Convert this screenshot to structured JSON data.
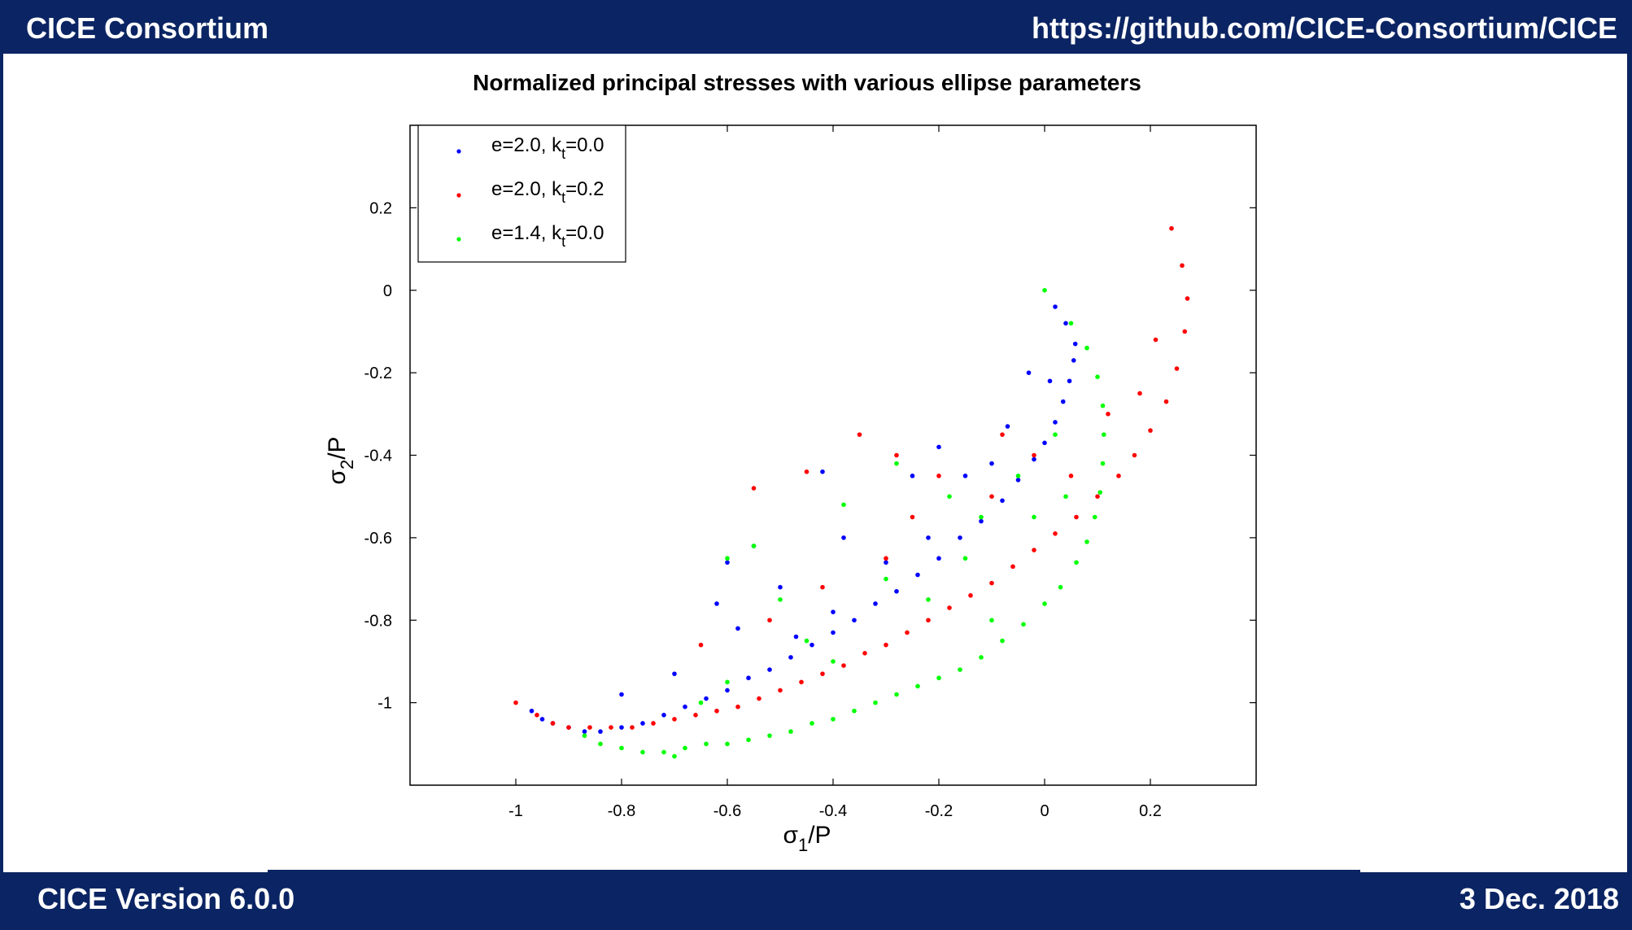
{
  "header": {
    "left_text": "CICE Consortium",
    "right_text": "https://github.com/CICE-Consortium/CICE"
  },
  "footer": {
    "left_text": "CICE Version 6.0.0",
    "right_text": "3 Dec. 2018"
  },
  "colors": {
    "frame": "#0b2463",
    "blue": "#0000ff",
    "red": "#ff0000",
    "green": "#00ff00"
  },
  "chart_data": {
    "type": "scatter",
    "title": "Normalized principal stresses with various ellipse parameters",
    "xlabel": {
      "main": "σ",
      "sub": "1",
      "tail": "/P"
    },
    "ylabel": {
      "main": "σ",
      "sub": "2",
      "tail": "/P"
    },
    "xlim": [
      -1.2,
      0.4
    ],
    "ylim": [
      -1.2,
      0.4
    ],
    "x_ticks": [
      -1,
      -0.8,
      -0.6,
      -0.4,
      -0.2,
      0,
      0.2
    ],
    "x_tick_labels": [
      "-1",
      "-0.8",
      "-0.6",
      "-0.4",
      "-0.2",
      "0",
      "0.2"
    ],
    "y_ticks": [
      -1,
      -0.8,
      -0.6,
      -0.4,
      -0.2,
      0,
      0.2
    ],
    "y_tick_labels": [
      "-1",
      "-0.8",
      "-0.6",
      "-0.4",
      "-0.2",
      "0",
      "0.2"
    ],
    "legend_position": "top-left",
    "series": [
      {
        "legend": {
          "main": "e=2.0, k",
          "sub": "t",
          "tail": "=0.0"
        },
        "color": "#0000ff",
        "points": [
          [
            -0.97,
            -1.02
          ],
          [
            -0.95,
            -1.04
          ],
          [
            -0.93,
            -1.05
          ],
          [
            -0.9,
            -1.06
          ],
          [
            -0.87,
            -1.07
          ],
          [
            -0.84,
            -1.07
          ],
          [
            -0.8,
            -1.06
          ],
          [
            -0.76,
            -1.05
          ],
          [
            -0.72,
            -1.03
          ],
          [
            -0.68,
            -1.01
          ],
          [
            -0.64,
            -0.99
          ],
          [
            -0.6,
            -0.97
          ],
          [
            -0.56,
            -0.94
          ],
          [
            -0.52,
            -0.92
          ],
          [
            -0.48,
            -0.89
          ],
          [
            -0.44,
            -0.86
          ],
          [
            -0.4,
            -0.83
          ],
          [
            -0.36,
            -0.8
          ],
          [
            -0.32,
            -0.76
          ],
          [
            -0.28,
            -0.73
          ],
          [
            -0.24,
            -0.69
          ],
          [
            -0.2,
            -0.65
          ],
          [
            -0.16,
            -0.6
          ],
          [
            -0.12,
            -0.56
          ],
          [
            -0.08,
            -0.51
          ],
          [
            -0.05,
            -0.46
          ],
          [
            -0.02,
            -0.41
          ],
          [
            0.0,
            -0.37
          ],
          [
            0.02,
            -0.32
          ],
          [
            0.035,
            -0.27
          ],
          [
            0.047,
            -0.22
          ],
          [
            0.055,
            -0.17
          ],
          [
            0.058,
            -0.13
          ],
          [
            0.04,
            -0.08
          ],
          [
            0.02,
            -0.04
          ],
          [
            -0.55,
            -0.62
          ],
          [
            -0.6,
            -0.66
          ],
          [
            -0.62,
            -0.76
          ],
          [
            -0.58,
            -0.82
          ],
          [
            -0.7,
            -0.93
          ],
          [
            -0.8,
            -0.98
          ],
          [
            -0.42,
            -0.44
          ],
          [
            -0.38,
            -0.6
          ],
          [
            -0.3,
            -0.66
          ],
          [
            -0.22,
            -0.6
          ],
          [
            -0.15,
            -0.45
          ],
          [
            -0.1,
            -0.42
          ],
          [
            -0.07,
            -0.33
          ],
          [
            -0.03,
            -0.2
          ],
          [
            0.01,
            -0.22
          ],
          [
            -0.2,
            -0.38
          ],
          [
            -0.4,
            -0.78
          ],
          [
            -0.47,
            -0.84
          ],
          [
            -0.25,
            -0.45
          ],
          [
            -0.5,
            -0.72
          ]
        ]
      },
      {
        "legend": {
          "main": "e=2.0, k",
          "sub": "t",
          "tail": "=0.2"
        },
        "color": "#ff0000",
        "points": [
          [
            -1.0,
            -1.0
          ],
          [
            -0.96,
            -1.03
          ],
          [
            -0.93,
            -1.05
          ],
          [
            -0.9,
            -1.06
          ],
          [
            -0.86,
            -1.06
          ],
          [
            -0.82,
            -1.06
          ],
          [
            -0.78,
            -1.06
          ],
          [
            -0.74,
            -1.05
          ],
          [
            -0.7,
            -1.04
          ],
          [
            -0.66,
            -1.03
          ],
          [
            -0.62,
            -1.02
          ],
          [
            -0.58,
            -1.01
          ],
          [
            -0.54,
            -0.99
          ],
          [
            -0.5,
            -0.97
          ],
          [
            -0.46,
            -0.95
          ],
          [
            -0.42,
            -0.93
          ],
          [
            -0.38,
            -0.91
          ],
          [
            -0.34,
            -0.88
          ],
          [
            -0.3,
            -0.86
          ],
          [
            -0.26,
            -0.83
          ],
          [
            -0.22,
            -0.8
          ],
          [
            -0.18,
            -0.77
          ],
          [
            -0.14,
            -0.74
          ],
          [
            -0.1,
            -0.71
          ],
          [
            -0.06,
            -0.67
          ],
          [
            -0.02,
            -0.63
          ],
          [
            0.02,
            -0.59
          ],
          [
            0.06,
            -0.55
          ],
          [
            0.1,
            -0.5
          ],
          [
            0.14,
            -0.45
          ],
          [
            0.17,
            -0.4
          ],
          [
            0.2,
            -0.34
          ],
          [
            0.23,
            -0.27
          ],
          [
            0.25,
            -0.19
          ],
          [
            0.265,
            -0.1
          ],
          [
            0.27,
            -0.02
          ],
          [
            0.26,
            0.06
          ],
          [
            0.24,
            0.15
          ],
          [
            -0.65,
            -0.86
          ],
          [
            -0.55,
            -0.48
          ],
          [
            -0.45,
            -0.44
          ],
          [
            -0.35,
            -0.35
          ],
          [
            -0.28,
            -0.4
          ],
          [
            -0.2,
            -0.45
          ],
          [
            -0.08,
            -0.35
          ],
          [
            -0.02,
            -0.4
          ],
          [
            0.05,
            -0.45
          ],
          [
            0.12,
            -0.3
          ],
          [
            0.18,
            -0.25
          ],
          [
            0.21,
            -0.12
          ],
          [
            -0.3,
            -0.65
          ],
          [
            -0.42,
            -0.72
          ],
          [
            -0.52,
            -0.8
          ],
          [
            -0.25,
            -0.55
          ],
          [
            -0.1,
            -0.5
          ]
        ]
      },
      {
        "legend": {
          "main": "e=1.4, k",
          "sub": "t",
          "tail": "=0.0"
        },
        "color": "#00ff00",
        "points": [
          [
            -0.87,
            -1.08
          ],
          [
            -0.84,
            -1.1
          ],
          [
            -0.8,
            -1.11
          ],
          [
            -0.76,
            -1.12
          ],
          [
            -0.72,
            -1.12
          ],
          [
            -0.68,
            -1.11
          ],
          [
            -0.64,
            -1.1
          ],
          [
            -0.6,
            -1.1
          ],
          [
            -0.56,
            -1.09
          ],
          [
            -0.52,
            -1.08
          ],
          [
            -0.48,
            -1.07
          ],
          [
            -0.44,
            -1.05
          ],
          [
            -0.4,
            -1.04
          ],
          [
            -0.36,
            -1.02
          ],
          [
            -0.32,
            -1.0
          ],
          [
            -0.28,
            -0.98
          ],
          [
            -0.24,
            -0.96
          ],
          [
            -0.2,
            -0.94
          ],
          [
            -0.16,
            -0.92
          ],
          [
            -0.12,
            -0.89
          ],
          [
            -0.08,
            -0.85
          ],
          [
            -0.04,
            -0.81
          ],
          [
            0.0,
            -0.76
          ],
          [
            0.03,
            -0.72
          ],
          [
            0.06,
            -0.66
          ],
          [
            0.08,
            -0.61
          ],
          [
            0.095,
            -0.55
          ],
          [
            0.105,
            -0.49
          ],
          [
            0.11,
            -0.42
          ],
          [
            0.112,
            -0.35
          ],
          [
            0.11,
            -0.28
          ],
          [
            0.1,
            -0.21
          ],
          [
            0.08,
            -0.14
          ],
          [
            0.05,
            -0.08
          ],
          [
            0.0,
            0.0
          ],
          [
            -0.7,
            -1.13
          ],
          [
            -0.6,
            -0.65
          ],
          [
            -0.55,
            -0.62
          ],
          [
            -0.5,
            -0.75
          ],
          [
            -0.45,
            -0.85
          ],
          [
            -0.38,
            -0.52
          ],
          [
            -0.28,
            -0.42
          ],
          [
            -0.18,
            -0.5
          ],
          [
            -0.12,
            -0.55
          ],
          [
            -0.05,
            -0.45
          ],
          [
            -0.02,
            -0.55
          ],
          [
            0.04,
            -0.5
          ],
          [
            -0.3,
            -0.7
          ],
          [
            -0.22,
            -0.75
          ],
          [
            -0.1,
            -0.8
          ],
          [
            -0.6,
            -0.95
          ],
          [
            -0.65,
            -1.0
          ],
          [
            -0.4,
            -0.9
          ],
          [
            0.02,
            -0.35
          ],
          [
            -0.15,
            -0.65
          ]
        ]
      }
    ]
  }
}
